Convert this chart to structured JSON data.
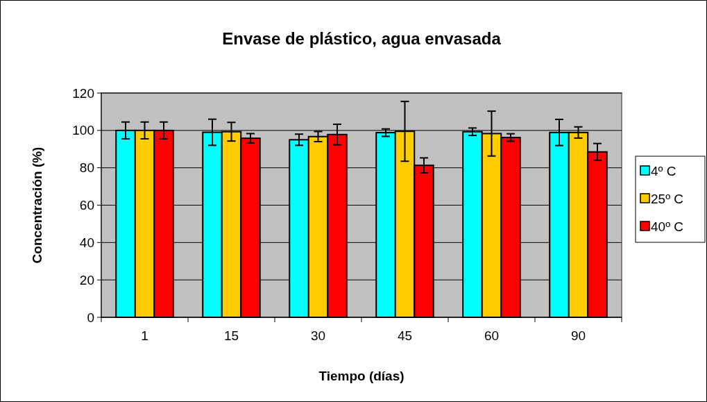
{
  "chart_data": {
    "type": "bar",
    "title": "Envase de plástico, agua envasada",
    "xlabel": "Tiempo (días)",
    "ylabel": "Concentración (%)",
    "categories": [
      "1",
      "15",
      "30",
      "45",
      "60",
      "90"
    ],
    "series": [
      {
        "name": "4º C",
        "color": "#00ffff",
        "values": [
          100,
          99,
          95,
          98.8,
          99.3,
          98.9
        ],
        "errors": [
          4.5,
          7,
          3,
          2,
          2,
          7
        ]
      },
      {
        "name": "25º C",
        "color": "#ffcc00",
        "values": [
          100,
          99.3,
          96.7,
          99.5,
          98.3,
          98.9
        ],
        "errors": [
          4.5,
          5,
          2.7,
          16,
          12,
          3
        ]
      },
      {
        "name": "40º C",
        "color": "#ff0000",
        "values": [
          100,
          95.8,
          97.8,
          81.3,
          96.2,
          88.5
        ],
        "errors": [
          4.5,
          2.5,
          5.5,
          4,
          2,
          4.5
        ]
      }
    ],
    "ylim": [
      0,
      120
    ],
    "yticks": [
      0,
      20,
      40,
      60,
      80,
      100,
      120
    ],
    "grid": "y",
    "legend": "right"
  }
}
